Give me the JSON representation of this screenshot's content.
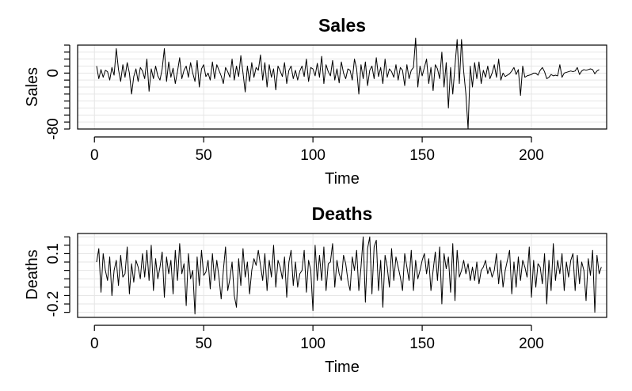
{
  "chart_data": [
    {
      "type": "line",
      "title": "Sales",
      "xlabel": "Time",
      "ylabel": "Sales",
      "xlim": [
        1,
        225
      ],
      "ylim": [
        -80,
        40
      ],
      "x_ticks": [
        0,
        50,
        100,
        150,
        200
      ],
      "y_tick_labels": [
        {
          "value": 0,
          "label": "0"
        },
        {
          "value": -80,
          "label": "-80"
        }
      ],
      "y_minor_ticks": [
        40,
        30,
        20,
        10,
        0,
        -10,
        -20,
        -30,
        -40,
        -50,
        -60,
        -70,
        -80
      ],
      "grid": true,
      "series": [
        {
          "x_start": 1,
          "values": [
            10,
            -8,
            5,
            -6,
            4,
            2,
            -10,
            8,
            -3,
            35,
            5,
            -12,
            12,
            -6,
            15,
            0,
            -30,
            -5,
            6,
            -12,
            8,
            3,
            -8,
            20,
            -26,
            6,
            -8,
            10,
            -4,
            -10,
            6,
            35,
            -12,
            16,
            -6,
            7,
            -15,
            2,
            22,
            -8,
            4,
            10,
            -6,
            15,
            0,
            -12,
            18,
            -20,
            6,
            12,
            -5,
            0,
            -10,
            16,
            -8,
            12,
            4,
            -4,
            -15,
            8,
            2,
            -6,
            20,
            -10,
            10,
            -5,
            25,
            0,
            -27,
            10,
            -12,
            15,
            -6,
            8,
            4,
            26,
            -10,
            15,
            -20,
            12,
            -6,
            6,
            -24,
            10,
            3,
            -5,
            15,
            -15,
            4,
            10,
            -8,
            4,
            -10,
            3,
            10,
            -5,
            20,
            -12,
            8,
            6,
            -4,
            14,
            -6,
            24,
            -15,
            12,
            2,
            -4,
            18,
            -10,
            6,
            -14,
            16,
            0,
            -8,
            6,
            4,
            -10,
            20,
            6,
            -30,
            12,
            -8,
            16,
            -18,
            4,
            10,
            -8,
            22,
            -5,
            8,
            -15,
            20,
            -6,
            6,
            2,
            -6,
            12,
            -10,
            8,
            4,
            -18,
            12,
            -8,
            4,
            8,
            50,
            -20,
            10,
            -4,
            8,
            20,
            -15,
            8,
            -25,
            12,
            6,
            -8,
            30,
            -20,
            15,
            -50,
            8,
            -30,
            10,
            48,
            -15,
            48,
            2,
            -30,
            -80,
            10,
            -20,
            15,
            -8,
            16,
            -15,
            4,
            -6,
            10,
            -8,
            0,
            12,
            -6,
            20,
            -10,
            0,
            -5,
            -3,
            -1,
            3,
            8,
            -2,
            5,
            -32,
            10,
            -6,
            -4,
            -3,
            -2,
            0,
            0,
            -3,
            4,
            8,
            2,
            -8,
            -6,
            -2,
            -4,
            -3,
            -4,
            12,
            -6,
            0,
            1,
            2,
            3,
            2,
            3,
            8,
            -2,
            3,
            5,
            4,
            5,
            6,
            5,
            -1,
            3,
            5
          ]
        }
      ]
    },
    {
      "type": "line",
      "title": "Deaths",
      "xlabel": "Time",
      "ylabel": "Deaths",
      "xlim": [
        1,
        225
      ],
      "ylim": [
        -0.28,
        0.22
      ],
      "x_ticks": [
        0,
        50,
        100,
        150,
        200
      ],
      "y_tick_labels": [
        {
          "value": 0.1,
          "label": "0.1"
        },
        {
          "value": -0.2,
          "label": "-0.2"
        }
      ],
      "y_minor_ticks": [
        0.2,
        0.15,
        0.1,
        0.05,
        0,
        -0.05,
        -0.1,
        -0.15,
        -0.2,
        -0.25
      ],
      "grid": true,
      "series": [
        {
          "x_start": 1,
          "values": [
            0.05,
            0.13,
            -0.13,
            0.1,
            0.0,
            -0.06,
            0.08,
            -0.15,
            0.0,
            0.06,
            -0.09,
            0.09,
            -0.04,
            -0.02,
            0.14,
            -0.14,
            0.04,
            -0.07,
            0.06,
            0.02,
            -0.05,
            0.1,
            -0.04,
            0.12,
            -0.06,
            0.15,
            -0.12,
            0.07,
            -0.05,
            0.02,
            0.11,
            -0.16,
            0.08,
            -0.02,
            0.06,
            -0.14,
            0.12,
            -0.06,
            0.16,
            -0.02,
            0.04,
            -0.21,
            0.1,
            -0.05,
            0.0,
            -0.26,
            0.08,
            -0.09,
            0.12,
            -0.03,
            -0.01,
            0.06,
            -0.11,
            0.1,
            -0.06,
            0.06,
            -0.04,
            -0.17,
            0.0,
            0.14,
            -0.12,
            -0.05,
            0.05,
            -0.15,
            -0.22,
            0.07,
            -0.09,
            0.13,
            -0.04,
            0.05,
            -0.14,
            0.0,
            0.07,
            0.03,
            0.12,
            0.03,
            -0.06,
            0.1,
            -0.12,
            0.06,
            -0.04,
            0.15,
            -0.1,
            0.06,
            0.02,
            -0.05,
            0.08,
            -0.16,
            0.05,
            0.12,
            -0.09,
            0.05,
            -0.1,
            -0.02,
            0.0,
            0.12,
            -0.13,
            0.06,
            0.0,
            -0.24,
            0.15,
            -0.06,
            0.09,
            -0.06,
            0.14,
            -0.12,
            0.04,
            0.05,
            0.16,
            -0.1,
            0.06,
            -0.02,
            -0.06,
            0.09,
            0.04,
            -0.06,
            -0.12,
            0.08,
            0.0,
            0.12,
            -0.12,
            0.02,
            0.2,
            -0.19,
            0.13,
            0.2,
            -0.14,
            0.14,
            0.18,
            -0.12,
            0.06,
            -0.22,
            0.09,
            0.02,
            -0.1,
            0.13,
            -0.06,
            0.08,
            0.02,
            -0.04,
            -0.12,
            0.1,
            0.02,
            -0.06,
            0.12,
            -0.12,
            0.06,
            -0.05,
            0.0,
            0.06,
            0.1,
            -0.02,
            0.07,
            -0.12,
            0.0,
            0.11,
            -0.06,
            0.14,
            -0.2,
            0.1,
            0.01,
            0.08,
            -0.13,
            0.16,
            -0.18,
            0.12,
            -0.04,
            0.0,
            0.06,
            -0.02,
            0.04,
            -0.06,
            0.02,
            -0.06,
            0.05,
            -0.08,
            0.0,
            0.02,
            0.06,
            -0.02,
            0.02,
            -0.04,
            0.0,
            0.1,
            -0.08,
            0.06,
            -0.1,
            0.0,
            0.06,
            0.12,
            -0.14,
            0.05,
            -0.1,
            0.08,
            -0.06,
            0.06,
            0.02,
            -0.04,
            0.14,
            -0.16,
            0.06,
            -0.1,
            0.04,
            0.02,
            -0.08,
            0.1,
            -0.2,
            0.06,
            -0.12,
            0.16,
            -0.06,
            0.06,
            -0.02,
            0.1,
            -0.12,
            0.05,
            -0.04,
            0.06,
            0.1,
            -0.12,
            0.09,
            -0.08,
            0.05,
            0.0,
            -0.18,
            0.07,
            -0.03,
            0.12,
            -0.25,
            0.09,
            -0.02,
            0.02
          ]
        }
      ]
    }
  ]
}
